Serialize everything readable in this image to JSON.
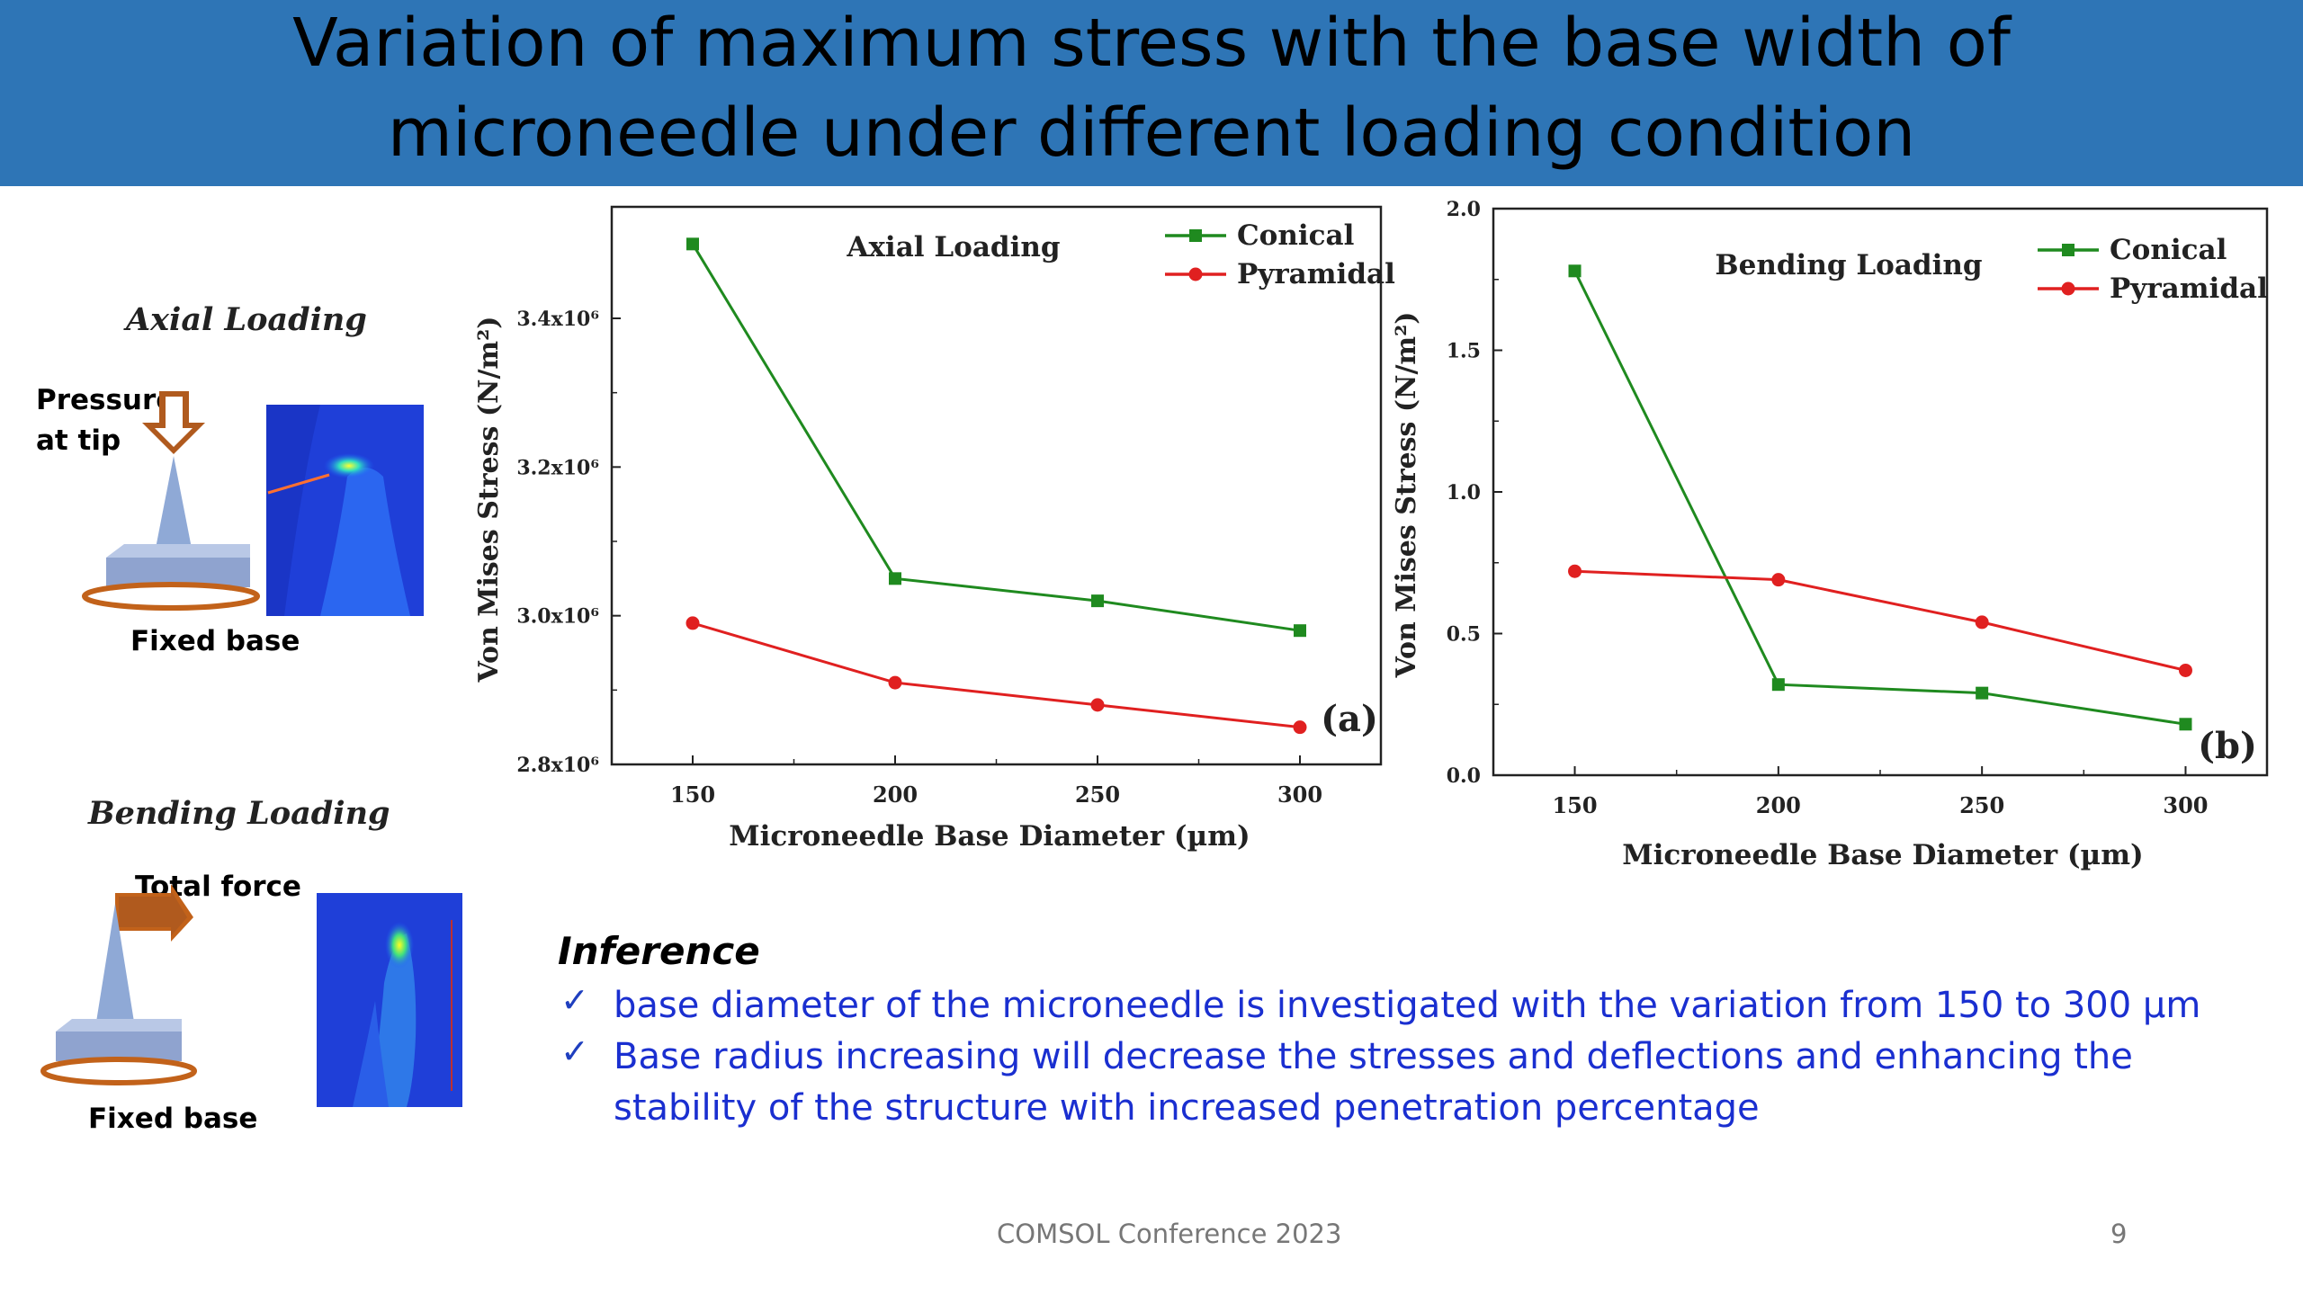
{
  "slide": {
    "title_line1": "Variation of maximum stress with the base width of",
    "title_line2": "microneedle under different loading condition",
    "footer_center": "COMSOL Conference 2023",
    "page_number": "9",
    "colors": {
      "title_bg": "#2e75b6",
      "conical": "#1f8a1f",
      "pyramidal": "#e02020",
      "inference_text": "#1a2fd0"
    }
  },
  "diagrams": {
    "axial": {
      "label": "Axial Loading",
      "load_text_1": "Pressure",
      "load_text_2": "at tip",
      "base_text": "Fixed base"
    },
    "bending": {
      "label": "Bending Loading",
      "load_text": "Total force",
      "base_text": "Fixed base"
    }
  },
  "inference": {
    "title": "Inference",
    "check_icon": "✓",
    "bullet1": "base diameter of the microneedle is investigated with the variation from 150 to 300 µm",
    "bullet2_line1": "Base radius increasing will decrease the stresses and deflections and enhancing the",
    "bullet2_line2": "stability of the structure with increased penetration percentage"
  },
  "chart_data": [
    {
      "type": "line",
      "title": "Axial Loading",
      "panel_label": "(a)",
      "xlabel": "Microneedle Base Diameter (µm)",
      "ylabel": "Von Mises Stress (N/m²)",
      "x": [
        150,
        200,
        250,
        300
      ],
      "xlim": [
        130,
        320
      ],
      "ylim": [
        2800000.0,
        3550000.0
      ],
      "xticks": [
        150,
        200,
        250,
        300
      ],
      "yticks": [
        2800000.0,
        3000000.0,
        3200000.0,
        3400000.0
      ],
      "ytick_labels": [
        "2.8x10⁶",
        "3.0x10⁶",
        "3.2x10⁶",
        "3.4x10⁶"
      ],
      "legend_position": "top-right",
      "series": [
        {
          "name": "Conical",
          "color": "#1f8a1f",
          "marker": "square",
          "values": [
            3500000.0,
            3050000.0,
            3020000.0,
            2980000.0
          ]
        },
        {
          "name": "Pyramidal",
          "color": "#e02020",
          "marker": "circle",
          "values": [
            2990000.0,
            2910000.0,
            2880000.0,
            2850000.0
          ]
        }
      ]
    },
    {
      "type": "line",
      "title": "Bending Loading",
      "panel_label": "(b)",
      "xlabel": "Microneedle Base Diameter (µm)",
      "ylabel": "Von Mises Stress (N/m²)",
      "x": [
        150,
        200,
        250,
        300
      ],
      "xlim": [
        130,
        320
      ],
      "ylim": [
        0,
        2.0
      ],
      "xticks": [
        150,
        200,
        250,
        300
      ],
      "yticks": [
        0,
        0.5,
        1.0,
        1.5,
        2.0
      ],
      "ytick_labels": [
        "0.0",
        "0.5",
        "1.0",
        "1.5",
        "2.0"
      ],
      "legend_position": "top-right",
      "series": [
        {
          "name": "Conical",
          "color": "#1f8a1f",
          "marker": "square",
          "values": [
            1.78,
            0.32,
            0.29,
            0.18
          ]
        },
        {
          "name": "Pyramidal",
          "color": "#e02020",
          "marker": "circle",
          "values": [
            0.72,
            0.69,
            0.54,
            0.37
          ]
        }
      ]
    }
  ]
}
